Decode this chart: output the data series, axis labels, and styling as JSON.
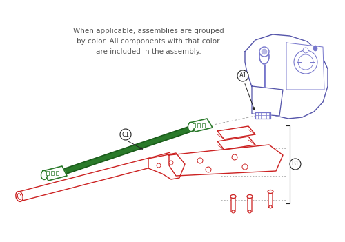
{
  "header_text": "When applicable, assemblies are grouped\nby color. All components with that color\nare included in the assembly.",
  "bg_color": "#ffffff",
  "label_A1": "A1",
  "label_B1": "B1",
  "label_C1": "C1",
  "blue_color": "#5555aa",
  "blue_light": "#7777cc",
  "red_color": "#cc2222",
  "green_dark": "#1a5c1a",
  "green_mid": "#2a7a2a",
  "gray_color": "#999999",
  "dark_color": "#222222",
  "text_color": "#555555",
  "header_fontsize": 7.5
}
